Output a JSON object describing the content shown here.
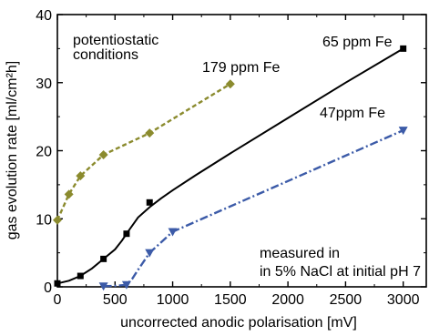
{
  "chart_data": {
    "type": "line",
    "title": "",
    "xlabel": "uncorrected anodic polarisation [mV]",
    "ylabel": "gas evolution rate [ml/cm²h]",
    "xlim": [
      0,
      3200
    ],
    "ylim": [
      0,
      40
    ],
    "xticks": [
      0,
      500,
      1000,
      1500,
      2000,
      2500,
      3000
    ],
    "yticks": [
      0,
      10,
      20,
      30,
      40
    ],
    "grid": false,
    "annotations": [
      "potentiostatic",
      "conditions",
      "measured in",
      "in 5% NaCl at initial pH 7"
    ],
    "series": [
      {
        "name": "65 ppm Fe",
        "color": "#000000",
        "marker": "square",
        "line_style": "solid",
        "points": [
          [
            0,
            0.5
          ],
          [
            200,
            1.6
          ],
          [
            400,
            4.1
          ],
          [
            600,
            7.8
          ],
          [
            800,
            12.4
          ],
          [
            3000,
            35.0
          ]
        ],
        "curve": [
          [
            0,
            0.5
          ],
          [
            100,
            0.9
          ],
          [
            200,
            1.6
          ],
          [
            300,
            2.7
          ],
          [
            400,
            4.1
          ],
          [
            500,
            5.5
          ],
          [
            560,
            6.8
          ],
          [
            620,
            8.3
          ],
          [
            700,
            10.2
          ],
          [
            800,
            11.7
          ],
          [
            900,
            13.0
          ],
          [
            1000,
            14.2
          ],
          [
            1200,
            16.4
          ],
          [
            1500,
            19.6
          ],
          [
            2000,
            24.8
          ],
          [
            2500,
            30.0
          ],
          [
            3000,
            35.0
          ]
        ]
      },
      {
        "name": "179 ppm Fe",
        "color": "#8b8b2e",
        "marker": "diamond",
        "line_style": "dashed",
        "points": [
          [
            0,
            9.8
          ],
          [
            100,
            13.6
          ],
          [
            200,
            16.3
          ],
          [
            400,
            19.4
          ],
          [
            800,
            22.6
          ],
          [
            1500,
            29.8
          ]
        ]
      },
      {
        "name": "47ppm Fe",
        "color": "#3c5ba8",
        "marker": "triangle-down",
        "line_style": "dashdot",
        "points": [
          [
            400,
            0.1
          ],
          [
            600,
            0.3
          ],
          [
            800,
            5.0
          ],
          [
            1000,
            8.1
          ],
          [
            3000,
            23.0
          ]
        ],
        "curve": [
          [
            400,
            0.1
          ],
          [
            500,
            0.15
          ],
          [
            600,
            0.3
          ],
          [
            650,
            1.2
          ],
          [
            700,
            2.5
          ],
          [
            800,
            5.0
          ],
          [
            1000,
            8.1
          ],
          [
            3000,
            23.0
          ]
        ]
      }
    ]
  }
}
